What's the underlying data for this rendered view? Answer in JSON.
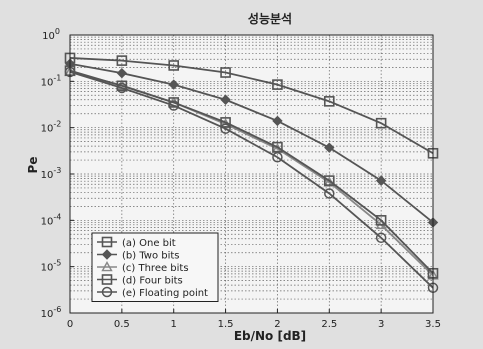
{
  "chart_data": {
    "type": "line",
    "title": "성능분석",
    "xlabel": "Eb/No [dB]",
    "ylabel": "Pe",
    "x": [
      0,
      0.5,
      1,
      1.5,
      2,
      2.5,
      3,
      3.5
    ],
    "xlim": [
      0,
      3.5
    ],
    "ylim": [
      1e-06,
      1
    ],
    "yscale": "log",
    "grid": true,
    "legend_position": "bottom-left",
    "xticks": [
      "0",
      "0.5",
      "1",
      "1.5",
      "2",
      "2.5",
      "3",
      "3.5"
    ],
    "yticks": [
      {
        "base": "10",
        "exp": "0"
      },
      {
        "base": "10",
        "exp": "-1"
      },
      {
        "base": "10",
        "exp": "-2"
      },
      {
        "base": "10",
        "exp": "-3"
      },
      {
        "base": "10",
        "exp": "-4"
      },
      {
        "base": "10",
        "exp": "-5"
      },
      {
        "base": "10",
        "exp": "-6"
      }
    ],
    "series": [
      {
        "name": "(a) One bit",
        "marker": "square",
        "color": "#555555",
        "values": [
          0.32,
          0.28,
          0.22,
          0.155,
          0.085,
          0.037,
          0.0125,
          0.0028
        ]
      },
      {
        "name": "(b) Two bits",
        "marker": "diamond",
        "color": "#555555",
        "values": [
          0.24,
          0.15,
          0.085,
          0.04,
          0.014,
          0.0037,
          0.00072,
          9e-05
        ]
      },
      {
        "name": "(c) Three bits",
        "marker": "triangle",
        "color": "#888888",
        "values": [
          0.16,
          0.082,
          0.035,
          0.012,
          0.0035,
          0.00066,
          8e-05,
          6.5e-06
        ]
      },
      {
        "name": "(d) Four bits",
        "marker": "square",
        "color": "#555555",
        "values": [
          0.17,
          0.08,
          0.035,
          0.013,
          0.0038,
          0.00072,
          0.0001,
          7.2e-06
        ]
      },
      {
        "name": "(e) Floating point",
        "marker": "circle",
        "color": "#555555",
        "values": [
          0.16,
          0.072,
          0.03,
          0.0095,
          0.0023,
          0.00038,
          4.2e-05,
          3.5e-06
        ]
      }
    ]
  }
}
